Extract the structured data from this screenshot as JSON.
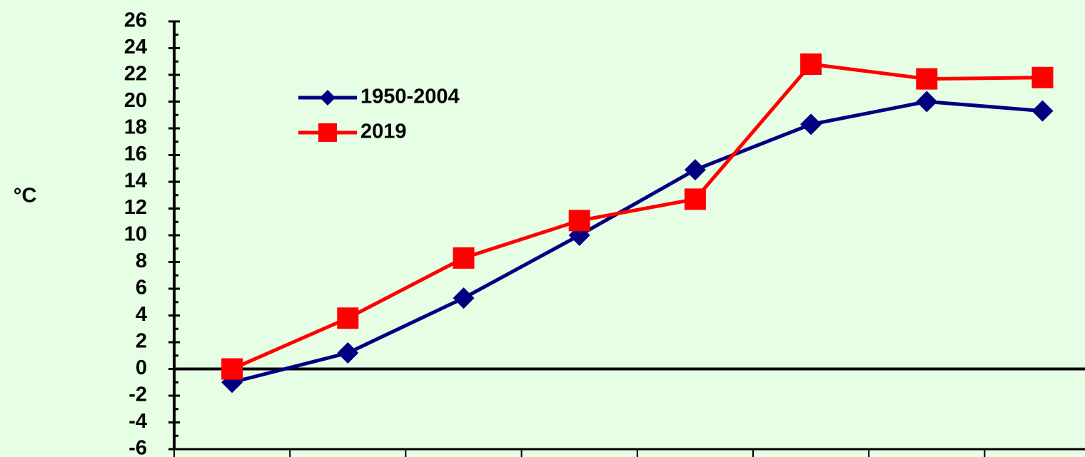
{
  "chart_data": {
    "type": "line",
    "y_label": "°C",
    "categories": [
      null,
      null,
      null,
      null,
      null,
      null,
      null,
      null
    ],
    "series": [
      {
        "name": "1950-2004",
        "color": "#000080",
        "marker": "diamond",
        "values": [
          -1.0,
          1.2,
          5.3,
          10.0,
          14.9,
          18.3,
          20.0,
          19.3
        ]
      },
      {
        "name": "2019",
        "color": "#ff0000",
        "marker": "square",
        "values": [
          0.0,
          3.8,
          8.3,
          11.1,
          12.7,
          22.8,
          21.7,
          21.8
        ]
      }
    ],
    "ylim": [
      -6,
      26
    ],
    "yticks": [
      -6,
      -4,
      -2,
      0,
      2,
      4,
      6,
      8,
      10,
      12,
      14,
      16,
      18,
      20,
      22,
      24,
      26
    ],
    "grid": false,
    "background": "#e6fee4"
  }
}
